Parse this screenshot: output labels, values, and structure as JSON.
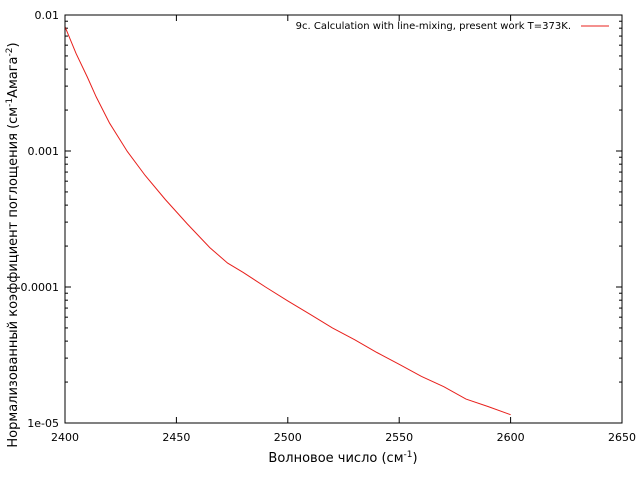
{
  "chart_data": {
    "type": "line",
    "xlabel": {
      "main": "Волновое число (см",
      "sup": "-1",
      "end": ")"
    },
    "ylabel": {
      "main": "Нормализованный коэффициент поглощения (см",
      "sup1": "-1",
      "mid": "Амага",
      "sup2": "-2",
      "end": ")"
    },
    "xlim": [
      2400,
      2650
    ],
    "ylim": [
      1e-05,
      0.01
    ],
    "yscale": "log",
    "grid": false,
    "legend_position": "top-right",
    "x_ticks": [
      {
        "value": 2400,
        "label": "2400"
      },
      {
        "value": 2450,
        "label": "2450"
      },
      {
        "value": 2500,
        "label": "2500"
      },
      {
        "value": 2550,
        "label": "2550"
      },
      {
        "value": 2600,
        "label": "2600"
      },
      {
        "value": 2650,
        "label": "2650"
      }
    ],
    "y_ticks": [
      {
        "value": 0.01,
        "label": "0.01"
      },
      {
        "value": 0.001,
        "label": "0.001"
      },
      {
        "value": 0.0001,
        "label": "0.0001"
      },
      {
        "value": 1e-05,
        "label": "1e-05"
      }
    ],
    "series": [
      {
        "name": "9c. Calculation with line-mixing, present work T=373K.",
        "color": "#e8201c",
        "x": [
          2400,
          2405,
          2410,
          2414,
          2420,
          2428,
          2436,
          2445,
          2455,
          2465,
          2473,
          2480,
          2490,
          2500,
          2510,
          2520,
          2530,
          2540,
          2550,
          2560,
          2570,
          2580,
          2590,
          2600
        ],
        "y": [
          0.0082,
          0.0052,
          0.0035,
          0.0025,
          0.0016,
          0.00099,
          0.00066,
          0.00044,
          0.00029,
          0.000195,
          0.00015,
          0.000128,
          0.0001,
          7.9e-05,
          6.3e-05,
          5e-05,
          4.1e-05,
          3.3e-05,
          2.7e-05,
          2.2e-05,
          1.85e-05,
          1.5e-05,
          1.32e-05,
          1.15e-05
        ]
      }
    ]
  }
}
